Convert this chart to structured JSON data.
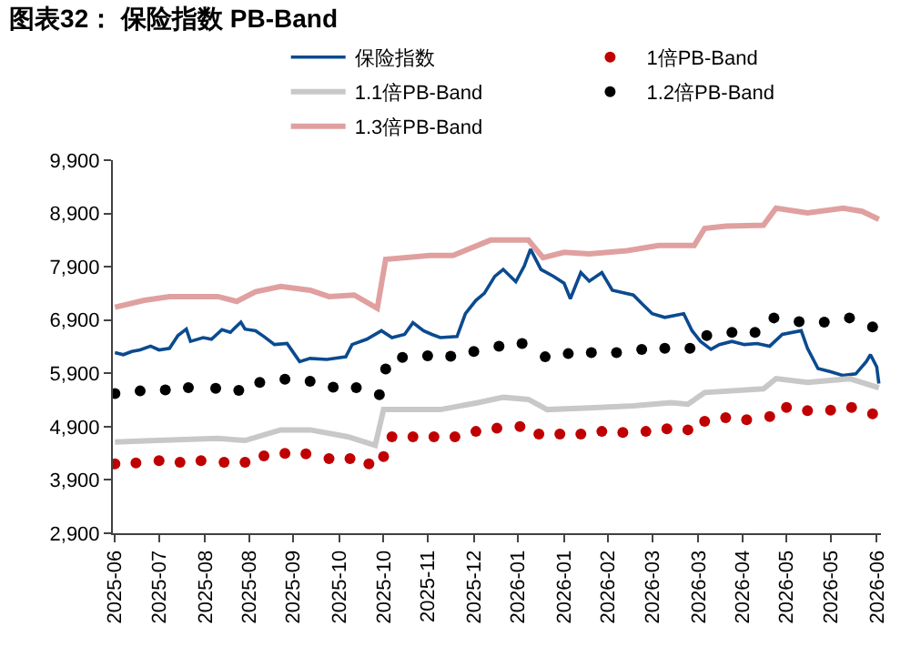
{
  "chart_data": {
    "type": "line",
    "title": "图表32： 保险指数 PB-Band",
    "legend": "top",
    "grid": false,
    "xlim": [
      "2025-06-23",
      "2026-06-24"
    ],
    "xticks": [
      {
        "value": "2025-06-24",
        "label": "2025-06"
      },
      {
        "value": "2025-07-15",
        "label": "2025-07"
      },
      {
        "value": "2025-08-06",
        "label": "2025-08"
      },
      {
        "value": "2025-08-27",
        "label": "2025-08"
      },
      {
        "value": "2025-09-17",
        "label": "2025-09"
      },
      {
        "value": "2025-10-09",
        "label": "2025-10"
      },
      {
        "value": "2025-10-30",
        "label": "2025-10"
      },
      {
        "value": "2025-11-20",
        "label": "2025-11"
      },
      {
        "value": "2025-12-12",
        "label": "2025-12"
      },
      {
        "value": "2026-01-02",
        "label": "2026-01"
      },
      {
        "value": "2026-01-24",
        "label": "2026-01"
      },
      {
        "value": "2026-02-14",
        "label": "2026-02"
      },
      {
        "value": "2026-03-07",
        "label": "2026-03"
      },
      {
        "value": "2026-03-29",
        "label": "2026-03"
      },
      {
        "value": "2026-04-19",
        "label": "2026-04"
      },
      {
        "value": "2026-05-10",
        "label": "2026-05"
      },
      {
        "value": "2026-05-31",
        "label": "2026-05"
      },
      {
        "value": "2026-06-22",
        "label": "2026-06"
      }
    ],
    "ylim": [
      2900,
      9900
    ],
    "yticks": [
      {
        "value": 2900,
        "label": "2,900"
      },
      {
        "value": 3900,
        "label": "3,900"
      },
      {
        "value": 4900,
        "label": "4,900"
      },
      {
        "value": 5900,
        "label": "5,900"
      },
      {
        "value": 6900,
        "label": "6,900"
      },
      {
        "value": 7900,
        "label": "7,900"
      },
      {
        "value": 8900,
        "label": "8,900"
      },
      {
        "value": 9900,
        "label": "9,900"
      }
    ],
    "series": [
      {
        "name": "保险指数",
        "color": "#0b4a8f",
        "x": [
          "2025-06-24",
          "2025-06-28",
          "2025-07-02",
          "2025-07-06",
          "2025-07-11",
          "2025-07-15",
          "2025-07-20",
          "2025-07-24",
          "2025-07-28",
          "2025-07-30",
          "2025-08-05",
          "2025-08-09",
          "2025-08-14",
          "2025-08-18",
          "2025-08-23",
          "2025-08-25",
          "2025-08-30",
          "2025-09-03",
          "2025-09-08",
          "2025-09-14",
          "2025-09-20",
          "2025-09-25",
          "2025-10-03",
          "2025-10-12",
          "2025-10-15",
          "2025-10-22",
          "2025-10-29",
          "2025-11-03",
          "2025-11-09",
          "2025-11-13",
          "2025-11-18",
          "2025-11-22",
          "2025-11-26",
          "2025-12-04",
          "2025-12-08",
          "2025-12-13",
          "2025-12-17",
          "2025-12-22",
          "2025-12-26",
          "2026-01-01",
          "2026-01-05",
          "2026-01-08",
          "2026-01-13",
          "2026-01-19",
          "2026-01-24",
          "2026-01-27",
          "2026-02-01",
          "2026-02-05",
          "2026-02-11",
          "2026-02-16",
          "2026-02-26",
          "2026-03-02",
          "2026-03-07",
          "2026-03-13",
          "2026-03-22",
          "2026-03-26",
          "2026-03-30",
          "2026-04-04",
          "2026-04-08",
          "2026-04-14",
          "2026-04-20",
          "2026-04-26",
          "2026-05-02",
          "2026-05-08",
          "2026-05-17",
          "2026-05-20",
          "2026-05-25",
          "2026-05-31",
          "2026-06-06",
          "2026-06-12",
          "2026-06-17",
          "2026-06-19",
          "2026-06-22",
          "2026-06-23"
        ],
        "values": [
          6290,
          6250,
          6310,
          6340,
          6410,
          6340,
          6370,
          6610,
          6730,
          6500,
          6570,
          6540,
          6720,
          6670,
          6860,
          6730,
          6700,
          6590,
          6440,
          6460,
          6120,
          6180,
          6160,
          6210,
          6440,
          6540,
          6700,
          6570,
          6630,
          6850,
          6700,
          6630,
          6570,
          6590,
          7020,
          7270,
          7400,
          7720,
          7850,
          7620,
          7910,
          8230,
          7850,
          7720,
          7590,
          7300,
          7790,
          7630,
          7790,
          7460,
          7370,
          7210,
          7020,
          6950,
          7020,
          6700,
          6500,
          6350,
          6440,
          6500,
          6440,
          6460,
          6410,
          6630,
          6700,
          6370,
          5990,
          5930,
          5860,
          5890,
          6120,
          6250,
          6020,
          5710
        ]
      },
      {
        "name": "1倍PB-Band",
        "type": "scatter",
        "marker": "circle",
        "color": "#c00000",
        "x": [
          "2025-06-24",
          "2025-07-04",
          "2025-07-15",
          "2025-07-25",
          "2025-08-04",
          "2025-08-15",
          "2025-08-25",
          "2025-09-03",
          "2025-09-13",
          "2025-09-23",
          "2025-10-04",
          "2025-10-14",
          "2025-10-23",
          "2025-10-30",
          "2025-11-03",
          "2025-11-13",
          "2025-11-23",
          "2025-12-03",
          "2025-12-13",
          "2025-12-23",
          "2026-01-03",
          "2026-01-12",
          "2026-01-22",
          "2026-02-01",
          "2026-02-11",
          "2026-02-21",
          "2026-03-04",
          "2026-03-14",
          "2026-03-24",
          "2026-04-01",
          "2026-04-11",
          "2026-04-21",
          "2026-05-02",
          "2026-05-10",
          "2026-05-20",
          "2026-05-31",
          "2026-06-10",
          "2026-06-20"
        ],
        "values": [
          4200,
          4220,
          4260,
          4230,
          4260,
          4230,
          4230,
          4350,
          4400,
          4390,
          4300,
          4300,
          4200,
          4340,
          4710,
          4710,
          4710,
          4710,
          4810,
          4870,
          4900,
          4760,
          4760,
          4760,
          4810,
          4790,
          4810,
          4860,
          4840,
          5000,
          5070,
          5030,
          5090,
          5260,
          5200,
          5210,
          5260,
          5140
        ]
      },
      {
        "name": "1.1倍PB-Band",
        "color": "#c8c8c8",
        "x": [
          "2025-06-24",
          "2025-07-14",
          "2025-08-12",
          "2025-08-25",
          "2025-09-11",
          "2025-09-25",
          "2025-10-13",
          "2025-10-26",
          "2025-10-30",
          "2025-11-26",
          "2025-12-14",
          "2025-12-26",
          "2026-01-07",
          "2026-01-16",
          "2026-02-05",
          "2026-02-26",
          "2026-03-16",
          "2026-03-24",
          "2026-04-01",
          "2026-04-29",
          "2026-05-05",
          "2026-05-20",
          "2026-06-09",
          "2026-06-23"
        ],
        "values": [
          4610,
          4640,
          4680,
          4640,
          4840,
          4840,
          4710,
          4550,
          5220,
          5220,
          5350,
          5450,
          5410,
          5220,
          5250,
          5290,
          5350,
          5320,
          5540,
          5610,
          5800,
          5730,
          5800,
          5630
        ]
      },
      {
        "name": "1.2倍PB-Band",
        "type": "scatter",
        "marker": "circle",
        "color": "#000000",
        "x": [
          "2025-06-24",
          "2025-07-06",
          "2025-07-18",
          "2025-07-29",
          "2025-08-11",
          "2025-08-22",
          "2025-09-01",
          "2025-09-13",
          "2025-09-25",
          "2025-10-06",
          "2025-10-17",
          "2025-10-28",
          "2025-10-31",
          "2025-11-08",
          "2025-11-20",
          "2025-12-01",
          "2025-12-12",
          "2025-12-24",
          "2026-01-04",
          "2026-01-15",
          "2026-01-26",
          "2026-02-06",
          "2026-02-18",
          "2026-03-02",
          "2026-03-13",
          "2026-03-25",
          "2026-04-02",
          "2026-04-14",
          "2026-04-25",
          "2026-05-04",
          "2026-05-16",
          "2026-05-28",
          "2026-06-09",
          "2026-06-20"
        ],
        "values": [
          5520,
          5570,
          5590,
          5630,
          5620,
          5580,
          5730,
          5790,
          5750,
          5640,
          5630,
          5500,
          5980,
          6200,
          6230,
          6220,
          6310,
          6410,
          6460,
          6210,
          6270,
          6290,
          6290,
          6350,
          6370,
          6370,
          6610,
          6670,
          6670,
          6940,
          6870,
          6860,
          6940,
          6770
        ]
      },
      {
        "name": "1.3倍PB-Band",
        "color": "#e0a0a0",
        "x": [
          "2025-06-24",
          "2025-07-08",
          "2025-07-20",
          "2025-08-12",
          "2025-08-21",
          "2025-08-30",
          "2025-09-11",
          "2025-09-25",
          "2025-10-04",
          "2025-10-16",
          "2025-10-27",
          "2025-10-31",
          "2025-11-21",
          "2025-12-02",
          "2025-12-20",
          "2026-01-07",
          "2026-01-14",
          "2026-01-24",
          "2026-02-05",
          "2026-02-23",
          "2026-03-10",
          "2026-03-27",
          "2026-04-01",
          "2026-04-11",
          "2026-04-29",
          "2026-05-05",
          "2026-05-20",
          "2026-06-06",
          "2026-06-15",
          "2026-06-23"
        ],
        "values": [
          7140,
          7270,
          7340,
          7340,
          7250,
          7430,
          7530,
          7460,
          7340,
          7370,
          7120,
          8040,
          8110,
          8110,
          8400,
          8400,
          8070,
          8170,
          8140,
          8200,
          8300,
          8300,
          8620,
          8660,
          8680,
          9000,
          8910,
          9000,
          8940,
          8790
        ]
      }
    ]
  }
}
